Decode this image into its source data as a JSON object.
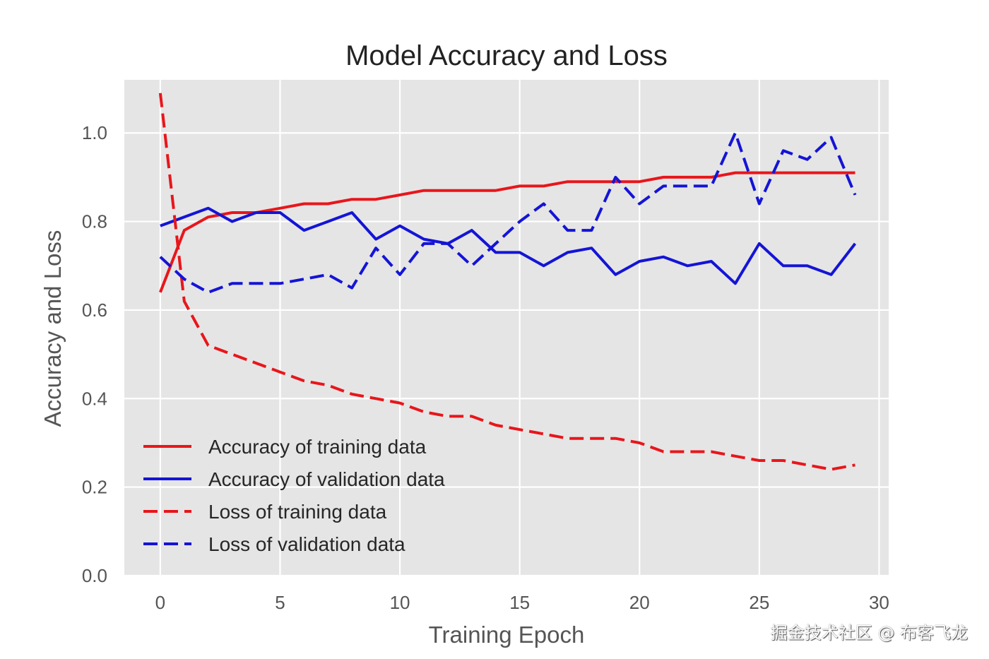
{
  "chart_data": {
    "type": "line",
    "title": "Model Accuracy and Loss",
    "xlabel": "Training Epoch",
    "ylabel": "Accuracy and Loss",
    "xlim": [
      -1.5,
      30.4
    ],
    "ylim": [
      0.0,
      1.12
    ],
    "xticks": [
      0,
      5,
      10,
      15,
      20,
      25,
      30
    ],
    "xtick_labels": [
      "0",
      "5",
      "10",
      "15",
      "20",
      "25",
      "30"
    ],
    "yticks": [
      0.0,
      0.2,
      0.4,
      0.6,
      0.8,
      1.0
    ],
    "ytick_labels": [
      "0.0",
      "0.2",
      "0.4",
      "0.6",
      "0.8",
      "1.0"
    ],
    "grid": true,
    "style": "ggplot",
    "legend_position": "lower-left",
    "x": [
      0,
      1,
      2,
      3,
      4,
      5,
      6,
      7,
      8,
      9,
      10,
      11,
      12,
      13,
      14,
      15,
      16,
      17,
      18,
      19,
      20,
      21,
      22,
      23,
      24,
      25,
      26,
      27,
      28,
      29
    ],
    "series": [
      {
        "name": "Accuracy of training data",
        "color": "#e8161b",
        "linestyle": "solid",
        "values": [
          0.64,
          0.78,
          0.81,
          0.82,
          0.82,
          0.83,
          0.84,
          0.84,
          0.85,
          0.85,
          0.86,
          0.87,
          0.87,
          0.87,
          0.87,
          0.88,
          0.88,
          0.89,
          0.89,
          0.89,
          0.89,
          0.9,
          0.9,
          0.9,
          0.91,
          0.91,
          0.91,
          0.91,
          0.91,
          0.91
        ]
      },
      {
        "name": "Accuracy of validation data",
        "color": "#1414d6",
        "linestyle": "solid",
        "values": [
          0.79,
          0.81,
          0.83,
          0.8,
          0.82,
          0.82,
          0.78,
          0.8,
          0.82,
          0.76,
          0.79,
          0.76,
          0.75,
          0.78,
          0.73,
          0.73,
          0.7,
          0.73,
          0.74,
          0.68,
          0.71,
          0.72,
          0.7,
          0.71,
          0.66,
          0.75,
          0.7,
          0.7,
          0.68,
          0.75
        ]
      },
      {
        "name": "Loss of training data",
        "color": "#e8161b",
        "linestyle": "dashed",
        "values": [
          1.09,
          0.62,
          0.52,
          0.5,
          0.48,
          0.46,
          0.44,
          0.43,
          0.41,
          0.4,
          0.39,
          0.37,
          0.36,
          0.36,
          0.34,
          0.33,
          0.32,
          0.31,
          0.31,
          0.31,
          0.3,
          0.28,
          0.28,
          0.28,
          0.27,
          0.26,
          0.26,
          0.25,
          0.24,
          0.25
        ]
      },
      {
        "name": "Loss of validation data",
        "color": "#1414d6",
        "linestyle": "dashed",
        "values": [
          0.72,
          0.67,
          0.64,
          0.66,
          0.66,
          0.66,
          0.67,
          0.68,
          0.65,
          0.74,
          0.68,
          0.75,
          0.75,
          0.7,
          0.75,
          0.8,
          0.84,
          0.78,
          0.78,
          0.9,
          0.84,
          0.88,
          0.88,
          0.88,
          1.0,
          0.84,
          0.96,
          0.94,
          0.99,
          0.86
        ]
      }
    ]
  },
  "watermark": "掘金技术社区 @ 布客飞龙"
}
